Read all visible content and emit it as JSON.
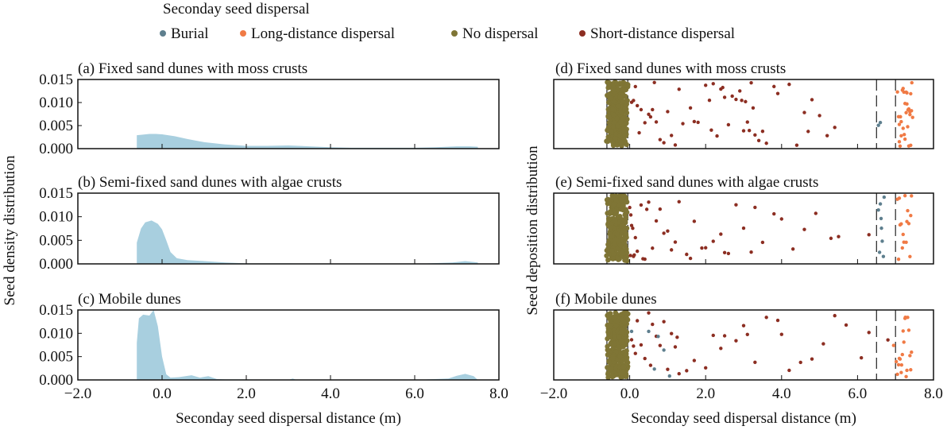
{
  "chart_data": [
    {
      "type": "area",
      "panel": "a",
      "title": "(a) Fixed sand dunes with moss crusts",
      "ylim": [
        0,
        0.015
      ],
      "xlim": [
        -2,
        8
      ],
      "color": "#a8cfdf",
      "x": [
        -0.6,
        -0.5,
        -0.3,
        -0.15,
        0,
        0.3,
        0.6,
        1.0,
        1.5,
        2.0,
        2.5,
        3.0,
        3.5,
        4.0,
        4.5,
        5.0,
        5.5,
        6.0,
        6.5,
        7.0,
        7.3,
        7.5
      ],
      "y": [
        0.0029,
        0.003,
        0.0032,
        0.0032,
        0.0031,
        0.0027,
        0.0021,
        0.0014,
        0.0009,
        0.0006,
        0.0006,
        0.0007,
        0.0005,
        0.0003,
        0.0002,
        0.0002,
        0.0002,
        0.0002,
        0.0003,
        0.0005,
        0.0005,
        0.0004
      ]
    },
    {
      "type": "area",
      "panel": "b",
      "title": "(b) Semi-fixed sand dunes with algae crusts",
      "ylim": [
        0,
        0.015
      ],
      "xlim": [
        -2,
        8
      ],
      "color": "#a8cfdf",
      "x": [
        -0.6,
        -0.5,
        -0.4,
        -0.25,
        -0.1,
        0,
        0.1,
        0.2,
        0.35,
        0.6,
        1.0,
        1.5,
        2.0,
        3.0,
        4.0,
        5.0,
        6.0,
        6.9,
        7.2,
        7.5
      ],
      "y": [
        0.0045,
        0.0075,
        0.0088,
        0.0092,
        0.0085,
        0.0073,
        0.005,
        0.0025,
        0.0012,
        0.0008,
        0.0006,
        0.0003,
        0.0001,
        0.0001,
        0,
        0,
        0,
        0.0003,
        0.0006,
        0.0003
      ]
    },
    {
      "type": "area",
      "panel": "c",
      "title": "(c) Mobile dunes",
      "ylim": [
        0,
        0.015
      ],
      "xlim": [
        -2,
        8
      ],
      "color": "#a8cfdf",
      "x": [
        -0.6,
        -0.55,
        -0.45,
        -0.3,
        -0.2,
        -0.1,
        0,
        0.1,
        0.2,
        0.4,
        0.7,
        0.9,
        1.1,
        1.3,
        1.5,
        2.0,
        3.0,
        3.1,
        3.2,
        4.0,
        5.0,
        6.0,
        6.8,
        7.0,
        7.2,
        7.4,
        7.5
      ],
      "y": [
        0.008,
        0.0132,
        0.014,
        0.0138,
        0.015,
        0.0115,
        0.005,
        0.0012,
        0.0005,
        0.0006,
        0.001,
        0.0005,
        0.0008,
        0.0002,
        0.0001,
        0.0001,
        0,
        0.0003,
        0,
        0,
        0,
        0,
        0.0003,
        0.0009,
        0.0013,
        0.0008,
        0
      ]
    },
    {
      "type": "scatter",
      "panel": "d",
      "title": "(d) Fixed sand dunes with moss crusts",
      "xlim": [
        -2,
        8
      ],
      "boundaries": [
        -0.6,
        -0.05,
        6.5,
        7.0
      ],
      "no_dispersal": [
        -0.58,
        -0.55,
        -0.52,
        -0.5,
        -0.48,
        -0.46,
        -0.44,
        -0.42,
        -0.4,
        -0.38,
        -0.36,
        -0.34,
        -0.32,
        -0.3,
        -0.28,
        -0.26,
        -0.24,
        -0.22,
        -0.2,
        -0.18,
        -0.16,
        -0.14,
        -0.12,
        -0.1,
        -0.08,
        -0.56,
        -0.5,
        -0.45,
        -0.4,
        -0.35,
        -0.3,
        -0.25,
        -0.2,
        -0.15,
        -0.1,
        -0.53,
        -0.47,
        -0.41,
        -0.33,
        -0.27,
        -0.21,
        -0.13,
        -0.07,
        -0.57,
        -0.43,
        -0.37,
        -0.29,
        -0.19,
        -0.11,
        -0.49,
        -0.39,
        -0.31,
        -0.23,
        -0.17,
        -0.09,
        -0.54,
        -0.44,
        -0.34,
        -0.24,
        -0.14
      ],
      "short_distance": [
        0.05,
        0.1,
        0.15,
        0.2,
        0.3,
        0.4,
        0.5,
        0.55,
        0.6,
        0.7,
        0.8,
        0.9,
        1.0,
        1.1,
        1.2,
        1.4,
        1.6,
        1.8,
        2.0,
        2.1,
        2.2,
        2.3,
        2.4,
        2.5,
        2.6,
        2.7,
        2.8,
        2.9,
        3.0,
        3.05,
        3.1,
        3.15,
        3.2,
        3.3,
        3.4,
        3.5,
        3.6,
        3.8,
        3.9,
        4.2,
        4.4,
        4.6,
        4.8,
        5.0,
        5.2,
        5.4,
        0.25,
        0.65,
        1.3,
        1.7,
        2.15,
        2.45,
        2.95,
        3.25,
        4.7
      ],
      "burial": [
        6.55,
        6.6
      ],
      "long_distance": [
        7.05,
        7.1,
        7.12,
        7.15,
        7.2,
        7.22,
        7.25,
        7.28,
        7.3,
        7.32,
        7.35,
        7.38,
        7.4,
        7.42,
        7.45,
        7.1,
        7.2,
        7.3,
        7.4,
        7.15,
        7.25,
        7.35,
        7.08,
        7.18,
        7.28,
        7.38,
        7.43,
        7.13,
        7.23,
        7.33
      ]
    },
    {
      "type": "scatter",
      "panel": "e",
      "title": "(e) Semi-fixed sand dunes with algae crusts",
      "xlim": [
        -2,
        8
      ],
      "boundaries": [
        -0.6,
        -0.05,
        6.5,
        7.0
      ],
      "no_dispersal": [
        -0.58,
        -0.55,
        -0.52,
        -0.5,
        -0.48,
        -0.46,
        -0.44,
        -0.42,
        -0.4,
        -0.38,
        -0.36,
        -0.34,
        -0.32,
        -0.3,
        -0.28,
        -0.26,
        -0.24,
        -0.22,
        -0.2,
        -0.18,
        -0.16,
        -0.14,
        -0.12,
        -0.1,
        -0.08,
        -0.56,
        -0.5,
        -0.45,
        -0.4,
        -0.35,
        -0.3,
        -0.25,
        -0.2,
        -0.15,
        -0.1,
        -0.53,
        -0.47,
        -0.41,
        -0.33,
        -0.27,
        -0.21,
        -0.13,
        -0.07,
        -0.57,
        -0.43,
        -0.37,
        -0.29,
        -0.19,
        -0.11,
        -0.49,
        -0.39,
        -0.31,
        -0.23,
        -0.17,
        -0.09
      ],
      "short_distance": [
        0,
        0.02,
        0.05,
        0.08,
        0.1,
        0.15,
        0.2,
        0.3,
        0.4,
        0.5,
        0.6,
        0.7,
        0.8,
        0.9,
        1.0,
        1.2,
        1.3,
        1.5,
        1.7,
        1.9,
        2.0,
        2.2,
        2.4,
        2.6,
        2.8,
        3.0,
        3.2,
        3.5,
        3.8,
        4.0,
        4.3,
        4.6,
        4.9,
        5.3,
        5.5,
        6.3,
        0.03,
        0.12,
        0.35,
        0.45,
        1.1,
        1.6,
        2.5,
        3.3
      ],
      "burial": [
        6.55,
        6.6,
        6.62,
        6.65,
        6.68,
        6.7,
        6.58,
        6.63
      ],
      "long_distance": [
        7.05,
        7.1,
        7.15,
        7.2,
        7.25,
        7.3,
        7.35,
        7.4,
        7.12,
        7.22,
        7.32,
        7.42,
        7.08,
        7.18,
        7.28,
        7.38
      ]
    },
    {
      "type": "scatter",
      "panel": "f",
      "title": "(f) Mobile dunes",
      "xlim": [
        -2,
        8
      ],
      "boundaries": [
        -0.6,
        -0.05,
        6.5,
        7.0
      ],
      "no_dispersal": [
        -0.58,
        -0.55,
        -0.52,
        -0.5,
        -0.48,
        -0.46,
        -0.44,
        -0.42,
        -0.4,
        -0.38,
        -0.36,
        -0.34,
        -0.32,
        -0.3,
        -0.28,
        -0.26,
        -0.24,
        -0.22,
        -0.2,
        -0.18,
        -0.16,
        -0.14,
        -0.12,
        -0.1,
        -0.08,
        -0.56,
        -0.5,
        -0.45,
        -0.4,
        -0.35,
        -0.3,
        -0.25,
        -0.2,
        -0.15,
        -0.1,
        -0.53,
        -0.47,
        -0.41,
        -0.33,
        -0.27,
        -0.21,
        -0.13,
        -0.07,
        -0.57,
        -0.43,
        -0.37,
        -0.29,
        -0.19,
        -0.11,
        -0.49,
        -0.39,
        -0.31,
        -0.23,
        -0.17,
        -0.09,
        -0.54,
        -0.44,
        -0.34,
        -0.24,
        -0.14
      ],
      "short_distance": [
        0.05,
        0.1,
        0.2,
        0.3,
        0.4,
        0.5,
        0.6,
        0.7,
        0.8,
        0.9,
        1.0,
        1.1,
        1.2,
        1.3,
        1.5,
        1.7,
        2.0,
        2.2,
        2.5,
        2.8,
        3.0,
        3.3,
        3.6,
        3.9,
        4.2,
        4.5,
        4.8,
        5.1,
        5.4,
        5.7,
        6.1,
        6.3,
        6.8,
        0.15,
        0.55,
        1.25,
        2.4,
        3.1,
        4.0
      ],
      "burial": [
        0.05,
        0.5,
        0.65,
        0.75,
        0.9,
        1.05
      ],
      "long_distance": [
        6.95,
        7.05,
        7.1,
        7.15,
        7.2,
        7.25,
        7.3,
        7.35,
        7.4,
        7.12,
        7.22,
        7.32,
        7.08,
        7.18,
        7.28,
        7.38,
        7.42,
        7.02,
        7.16,
        7.26
      ]
    }
  ],
  "legend": {
    "title": "Seconday seed dispersal",
    "items": [
      {
        "key": "burial",
        "label": "Burial",
        "color": "#5e7f8e"
      },
      {
        "key": "long_distance",
        "label": "Long-distance dispersal",
        "color": "#f07a45"
      },
      {
        "key": "no_dispersal",
        "label": "No dispersal",
        "color": "#7f7535"
      },
      {
        "key": "short_distance",
        "label": "Short-distance dispersal",
        "color": "#8c2e22"
      }
    ]
  },
  "left_ylabel": "Seed density distribution",
  "right_ylabel": "Seed deposition distribution",
  "xlabel": "Seconday seed dispersal distance (m)",
  "xticks": [
    "−2.0",
    "0.0",
    "2.0",
    "4.0",
    "6.0",
    "8.0"
  ],
  "yticks": [
    "0.000",
    "0.005",
    "0.010",
    "0.015"
  ]
}
